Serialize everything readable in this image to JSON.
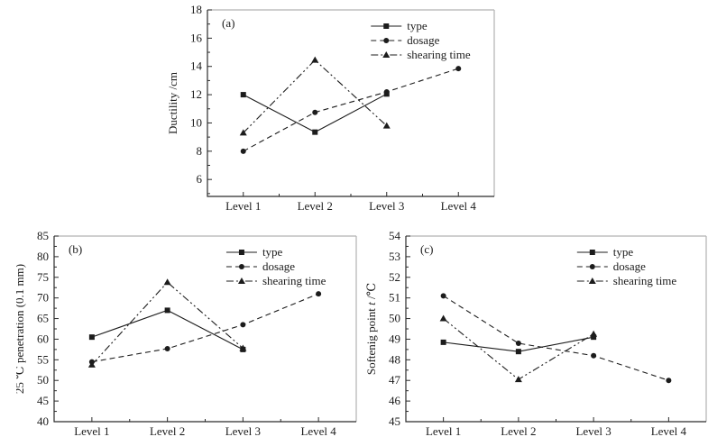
{
  "figure": {
    "background": "#ffffff",
    "axis_color": "#2b2b2b",
    "top_right_spine_color": "#b2b2b2",
    "series_color": "#1c1c1c",
    "text_color": "#1c1c1c"
  },
  "chart_data": [
    {
      "id": "a",
      "type": "line",
      "panel_label": "(a)",
      "ylabel": "Ductility /cm",
      "ylabel_parts": [
        {
          "text": "Ductility /cm",
          "italic": false
        }
      ],
      "xlabel": "",
      "categories": [
        "Level 1",
        "Level 2",
        "Level 3",
        "Level 4"
      ],
      "ylim": [
        4.8,
        18
      ],
      "y_major_start": 6,
      "y_major_step": 2,
      "y_minor_step": 1,
      "grid": false,
      "legend_position": "top-right-inside",
      "series": [
        {
          "name": "type",
          "marker": "square",
          "line": "solid",
          "values": [
            12.0,
            9.35,
            12.05,
            null
          ]
        },
        {
          "name": "dosage",
          "marker": "circle",
          "line": "dashed",
          "values": [
            8.0,
            10.75,
            12.2,
            13.85
          ]
        },
        {
          "name": "shearing time",
          "marker": "triangle",
          "line": "dashdot",
          "values": [
            9.3,
            14.45,
            9.8,
            null
          ]
        }
      ]
    },
    {
      "id": "b",
      "type": "line",
      "panel_label": "(b)",
      "ylabel": "25 ℃ penetration (0.1 mm)",
      "ylabel_parts": [
        {
          "text": "25 ℃ penetration (0.1 mm)",
          "italic": false
        }
      ],
      "xlabel": "",
      "categories": [
        "Level 1",
        "Level 2",
        "Level 3",
        "Level 4"
      ],
      "ylim": [
        40,
        85
      ],
      "y_major_start": 40,
      "y_major_step": 5,
      "y_minor_step": 2.5,
      "grid": false,
      "legend_position": "top-right-inside",
      "series": [
        {
          "name": "type",
          "marker": "square",
          "line": "solid",
          "values": [
            60.5,
            67.0,
            57.5,
            null
          ]
        },
        {
          "name": "dosage",
          "marker": "circle",
          "line": "dashed",
          "values": [
            54.5,
            57.7,
            63.5,
            71.0
          ]
        },
        {
          "name": "shearing time",
          "marker": "triangle",
          "line": "dashdot",
          "values": [
            53.8,
            73.8,
            57.8,
            null
          ]
        }
      ]
    },
    {
      "id": "c",
      "type": "line",
      "panel_label": "(c)",
      "ylabel": "Softenig point   t /℃",
      "ylabel_parts": [
        {
          "text": "Softenig point   ",
          "italic": false
        },
        {
          "text": "t",
          "italic": true
        },
        {
          "text": " /℃",
          "italic": false
        }
      ],
      "xlabel": "",
      "categories": [
        "Level 1",
        "Level 2",
        "Level 3",
        "Level 4"
      ],
      "ylim": [
        45,
        54
      ],
      "y_major_start": 45,
      "y_major_step": 1,
      "y_minor_step": 0.5,
      "grid": false,
      "legend_position": "top-right-inside",
      "series": [
        {
          "name": "type",
          "marker": "square",
          "line": "solid",
          "values": [
            48.85,
            48.4,
            49.1,
            null
          ]
        },
        {
          "name": "dosage",
          "marker": "circle",
          "line": "dashed",
          "values": [
            51.1,
            48.8,
            48.2,
            47.0
          ]
        },
        {
          "name": "shearing time",
          "marker": "triangle",
          "line": "dashdot",
          "values": [
            50.0,
            47.05,
            49.25,
            null
          ]
        }
      ]
    }
  ]
}
